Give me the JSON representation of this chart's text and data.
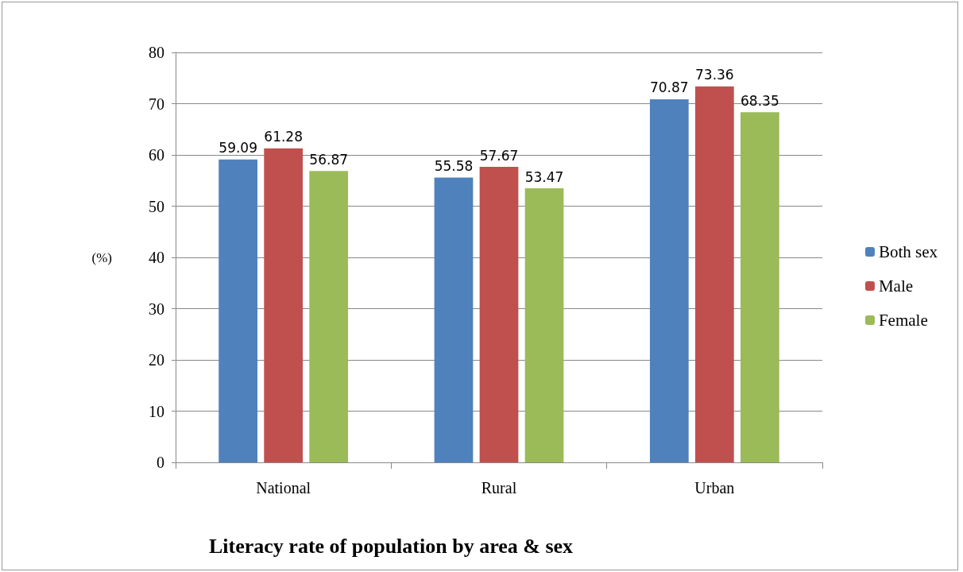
{
  "chart_data": {
    "type": "bar",
    "title": "Literacy rate of population by area & sex",
    "ylabel": "(%)",
    "categories": [
      "National",
      "Rural",
      "Urban"
    ],
    "series": [
      {
        "name": "Both sex",
        "color": "#4f81bd",
        "values": [
          59.09,
          55.58,
          70.87
        ]
      },
      {
        "name": "Male",
        "color": "#c0504d",
        "values": [
          61.28,
          57.67,
          73.36
        ]
      },
      {
        "name": "Female",
        "color": "#9bbb59",
        "values": [
          56.87,
          53.47,
          68.35
        ]
      }
    ],
    "ylim": [
      0,
      80
    ],
    "yticks": [
      0,
      10,
      20,
      30,
      40,
      50,
      60,
      70,
      80
    ],
    "grid": "y",
    "legend": "right",
    "data_labels": true
  }
}
